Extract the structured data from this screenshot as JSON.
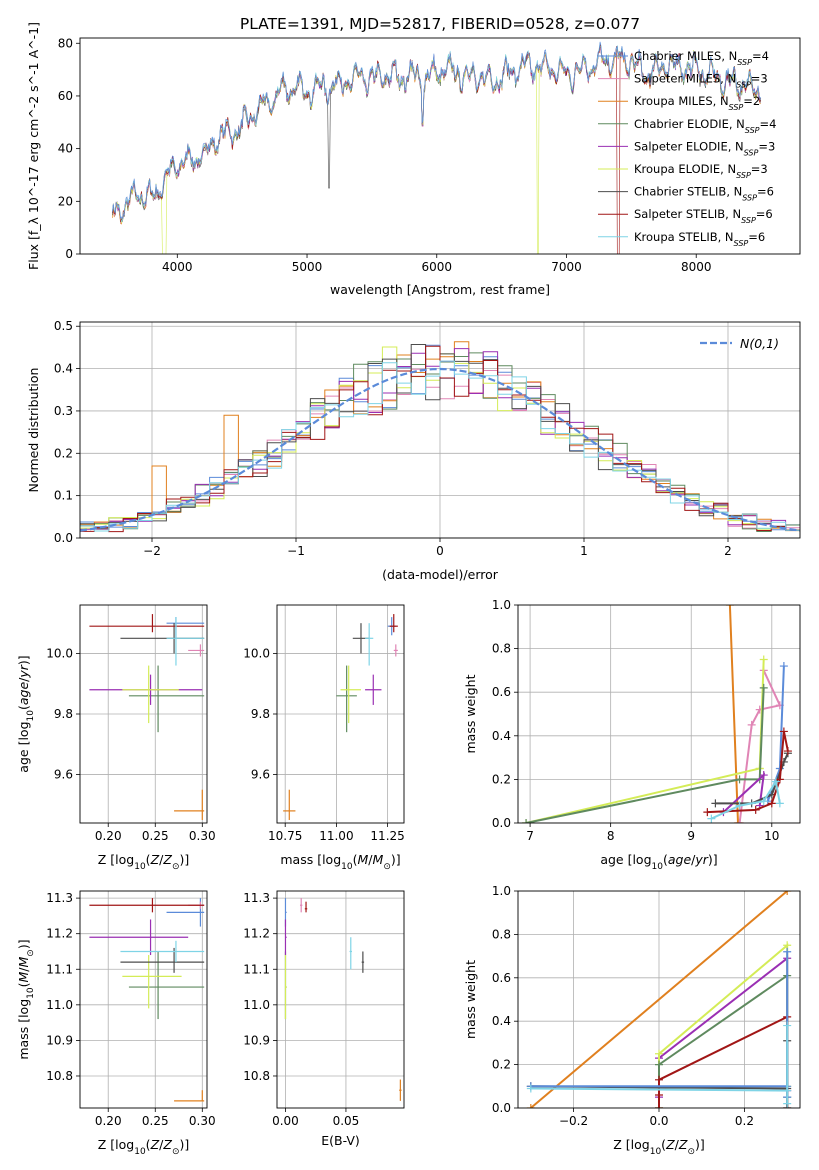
{
  "figure_title": "PLATE=1391, MJD=52817, FIBERID=0528, z=0.077",
  "colors": {
    "chabrier_miles": "#5b8bd9",
    "salpeter_miles": "#e085b5",
    "kroupa_miles": "#e0801f",
    "chabrier_elodie": "#5f8a5f",
    "salpeter_elodie": "#9a2fb3",
    "kroupa_elodie": "#d4ec57",
    "chabrier_stelib": "#4d4d4d",
    "salpeter_stelib": "#a11616",
    "kroupa_stelib": "#7fd4e6",
    "normal": "#5b8bd9"
  },
  "legend": {
    "chabrier_miles": "Chabrier MILES, N_SSP=4",
    "salpeter_miles": "Salpeter MILES, N_SSP=3",
    "kroupa_miles": "Kroupa MILES, N_SSP=2",
    "chabrier_elodie": "Chabrier ELODIE, N_SSP=4",
    "salpeter_elodie": "Salpeter ELODIE, N_SSP=3",
    "kroupa_elodie": "Kroupa ELODIE, N_SSP=3",
    "chabrier_stelib": "Chabrier STELIB, N_SSP=6",
    "salpeter_stelib": "Salpeter STELIB, N_SSP=6",
    "kroupa_stelib": "Kroupa STELIB, N_SSP=6",
    "normal": "N(0,1)"
  },
  "chart_data": [
    {
      "id": "spectrum",
      "type": "line",
      "xlabel": "wavelength [Angstrom, rest frame]",
      "ylabel": "Flux [f_λ 10^-17 erg cm^-2 s^-1 A^-1]",
      "xlim": [
        3250,
        8800
      ],
      "ylim": [
        0,
        82
      ],
      "xticks": [
        4000,
        5000,
        6000,
        7000,
        8000
      ],
      "yticks": [
        0,
        20,
        40,
        60,
        80
      ],
      "legend_position": "right",
      "spectrum_nodes": [
        [
          3500,
          15
        ],
        [
          3600,
          18
        ],
        [
          3700,
          23
        ],
        [
          3800,
          21
        ],
        [
          3900,
          28
        ],
        [
          4000,
          34
        ],
        [
          4100,
          36
        ],
        [
          4200,
          37
        ],
        [
          4300,
          44
        ],
        [
          4400,
          46
        ],
        [
          4500,
          48
        ],
        [
          4600,
          54
        ],
        [
          4700,
          57
        ],
        [
          4800,
          62
        ],
        [
          4900,
          63
        ],
        [
          5000,
          62
        ],
        [
          5100,
          63
        ],
        [
          5200,
          64
        ],
        [
          5300,
          65
        ],
        [
          5400,
          67
        ],
        [
          5500,
          66
        ],
        [
          5600,
          68
        ],
        [
          5700,
          67
        ],
        [
          5800,
          68
        ],
        [
          5900,
          66
        ],
        [
          6000,
          69
        ],
        [
          6100,
          70
        ],
        [
          6200,
          68
        ],
        [
          6300,
          67
        ],
        [
          6400,
          66
        ],
        [
          6500,
          67
        ],
        [
          6600,
          70
        ],
        [
          6700,
          71
        ],
        [
          6800,
          71
        ],
        [
          6900,
          70
        ],
        [
          7000,
          68
        ],
        [
          7100,
          70
        ],
        [
          7200,
          72
        ],
        [
          7300,
          73
        ],
        [
          7400,
          74
        ],
        [
          7500,
          73
        ],
        [
          7600,
          68
        ],
        [
          7700,
          70
        ],
        [
          7800,
          72
        ],
        [
          7900,
          71
        ],
        [
          8000,
          70
        ],
        [
          8100,
          68
        ],
        [
          8200,
          66
        ],
        [
          8300,
          65
        ],
        [
          8400,
          64
        ],
        [
          8500,
          62
        ]
      ]
    },
    {
      "id": "residuals",
      "type": "histogram",
      "xlabel": "(data-model)/error",
      "ylabel": "Normed distribution",
      "xlim": [
        -2.5,
        2.5
      ],
      "ylim": [
        0,
        0.51
      ],
      "xticks": [
        -2,
        -1,
        0,
        1,
        2
      ],
      "yticks": [
        0.0,
        0.1,
        0.2,
        0.3,
        0.4,
        0.5
      ],
      "grid": true,
      "legend_position": "top-right",
      "bin_width": 0.1,
      "bin_start": -2.5
    },
    {
      "id": "age-vs-Z",
      "type": "scatter",
      "xlabel": "Z [log10(Z/Z⊙)]",
      "ylabel": "age [log10(age/yr)]",
      "xlim": [
        0.17,
        0.305
      ],
      "ylim": [
        9.44,
        10.16
      ],
      "xticks": [
        0.2,
        0.25,
        0.3
      ],
      "yticks": [
        9.6,
        9.8,
        10.0
      ],
      "grid": true,
      "points": [
        {
          "s": "chabrier_miles",
          "x": 0.272,
          "y": 10.1,
          "xerr": [
            0.262,
            0.302
          ],
          "yerr": [
            10.05,
            10.12
          ]
        },
        {
          "s": "salpeter_miles",
          "x": 0.298,
          "y": 10.01,
          "xerr": [
            0.285,
            0.302
          ],
          "yerr": [
            9.99,
            10.03
          ]
        },
        {
          "s": "kroupa_miles",
          "x": 0.3,
          "y": 9.48,
          "xerr": [
            0.27,
            0.302
          ],
          "yerr": [
            9.45,
            9.55
          ]
        },
        {
          "s": "chabrier_elodie",
          "x": 0.253,
          "y": 9.86,
          "xerr": [
            0.222,
            0.302
          ],
          "yerr": [
            9.74,
            9.96
          ]
        },
        {
          "s": "salpeter_elodie",
          "x": 0.245,
          "y": 9.88,
          "xerr": [
            0.18,
            0.3
          ],
          "yerr": [
            9.83,
            9.93
          ]
        },
        {
          "s": "kroupa_elodie",
          "x": 0.243,
          "y": 9.88,
          "xerr": [
            0.215,
            0.275
          ],
          "yerr": [
            9.77,
            9.96
          ]
        },
        {
          "s": "chabrier_stelib",
          "x": 0.27,
          "y": 10.05,
          "xerr": [
            0.213,
            0.302
          ],
          "yerr": [
            10.0,
            10.1
          ]
        },
        {
          "s": "salpeter_stelib",
          "x": 0.247,
          "y": 10.09,
          "xerr": [
            0.18,
            0.302
          ],
          "yerr": [
            10.07,
            10.13
          ]
        },
        {
          "s": "kroupa_stelib",
          "x": 0.272,
          "y": 10.05,
          "xerr": [
            0.262,
            0.302
          ],
          "yerr": [
            9.96,
            10.12
          ]
        }
      ]
    },
    {
      "id": "age-vs-mass",
      "type": "scatter",
      "xlabel": "mass [log10(M/M⊙)]",
      "ylabel": "",
      "xlim": [
        10.71,
        11.33
      ],
      "ylim": [
        9.44,
        10.16
      ],
      "xticks": [
        10.75,
        11.0,
        11.25
      ],
      "yticks": [
        9.6,
        9.8,
        10.0
      ],
      "grid": true,
      "points": [
        {
          "s": "chabrier_miles",
          "x": 11.27,
          "y": 10.09,
          "xerr": [
            11.25,
            11.29
          ],
          "yerr": [
            10.06,
            10.12
          ]
        },
        {
          "s": "salpeter_miles",
          "x": 11.29,
          "y": 10.01,
          "xerr": [
            11.28,
            11.3
          ],
          "yerr": [
            9.99,
            10.03
          ]
        },
        {
          "s": "kroupa_miles",
          "x": 10.77,
          "y": 9.48,
          "xerr": [
            10.74,
            10.8
          ],
          "yerr": [
            9.45,
            9.55
          ]
        },
        {
          "s": "chabrier_elodie",
          "x": 11.05,
          "y": 9.86,
          "xerr": [
            11.0,
            11.1
          ],
          "yerr": [
            9.74,
            9.96
          ]
        },
        {
          "s": "salpeter_elodie",
          "x": 11.18,
          "y": 9.88,
          "xerr": [
            11.14,
            11.22
          ],
          "yerr": [
            9.83,
            9.93
          ]
        },
        {
          "s": "kroupa_elodie",
          "x": 11.06,
          "y": 9.88,
          "xerr": [
            11.02,
            11.12
          ],
          "yerr": [
            9.77,
            9.96
          ]
        },
        {
          "s": "chabrier_stelib",
          "x": 11.12,
          "y": 10.05,
          "xerr": [
            11.08,
            11.16
          ],
          "yerr": [
            10.0,
            10.1
          ]
        },
        {
          "s": "salpeter_stelib",
          "x": 11.28,
          "y": 10.09,
          "xerr": [
            11.26,
            11.3
          ],
          "yerr": [
            10.07,
            10.13
          ]
        },
        {
          "s": "kroupa_stelib",
          "x": 11.16,
          "y": 10.05,
          "xerr": [
            11.14,
            11.18
          ],
          "yerr": [
            9.96,
            10.1
          ]
        }
      ]
    },
    {
      "id": "weight-vs-age",
      "type": "line",
      "xlabel": "age [log10(age/yr)]",
      "ylabel": "mass weight",
      "xlim": [
        6.85,
        10.35
      ],
      "ylim": [
        0,
        1.0
      ],
      "xticks": [
        7,
        8,
        9,
        10
      ],
      "yticks": [
        0.0,
        0.2,
        0.4,
        0.6,
        0.8,
        1.0
      ],
      "grid": true,
      "series": [
        {
          "s": "kroupa_miles",
          "x": [
            9.48,
            9.58,
            9.6
          ],
          "y": [
            1.0,
            0.0,
            0.0
          ]
        },
        {
          "s": "salpeter_miles",
          "x": [
            9.6,
            9.75,
            9.85,
            10.1,
            9.9
          ],
          "y": [
            0.0,
            0.45,
            0.52,
            0.54,
            0.7
          ]
        },
        {
          "s": "kroupa_elodie",
          "x": [
            6.95,
            9.85,
            9.85,
            9.9
          ],
          "y": [
            0.0,
            0.25,
            0.25,
            0.75
          ]
        },
        {
          "s": "chabrier_elodie",
          "x": [
            6.95,
            9.6,
            9.85,
            9.9
          ],
          "y": [
            0.0,
            0.2,
            0.2,
            0.62
          ]
        },
        {
          "s": "chabrier_miles",
          "x": [
            9.95,
            10.1,
            10.15
          ],
          "y": [
            0.1,
            0.25,
            0.72
          ]
        },
        {
          "s": "salpeter_elodie",
          "x": [
            9.4,
            9.9,
            9.85
          ],
          "y": [
            0.05,
            0.22,
            0.08
          ]
        },
        {
          "s": "chabrier_stelib",
          "x": [
            9.3,
            9.75,
            10.0,
            10.15,
            10.2
          ],
          "y": [
            0.09,
            0.09,
            0.13,
            0.28,
            0.32
          ]
        },
        {
          "s": "salpeter_stelib",
          "x": [
            9.2,
            9.8,
            10.0,
            10.1,
            10.15,
            10.2
          ],
          "y": [
            0.05,
            0.06,
            0.09,
            0.2,
            0.42,
            0.33
          ]
        },
        {
          "s": "kroupa_stelib",
          "x": [
            9.25,
            9.6,
            9.9,
            10.05,
            10.1
          ],
          "y": [
            0.02,
            0.08,
            0.1,
            0.19,
            0.09
          ]
        }
      ]
    },
    {
      "id": "mass-vs-Z",
      "type": "scatter",
      "xlabel": "Z [log10(Z/Z⊙)]",
      "ylabel": "mass [log10(M/M⊙)]",
      "xlim": [
        0.17,
        0.305
      ],
      "ylim": [
        10.71,
        11.32
      ],
      "xticks": [
        0.2,
        0.25,
        0.3
      ],
      "yticks": [
        10.8,
        10.9,
        11.0,
        11.1,
        11.2,
        11.3
      ],
      "grid": true,
      "points": [
        {
          "s": "chabrier_miles",
          "x": 0.298,
          "y": 11.26,
          "xerr": [
            0.262,
            0.302
          ],
          "yerr": [
            11.22,
            11.3
          ]
        },
        {
          "s": "salpeter_miles",
          "x": 0.298,
          "y": 11.28,
          "xerr": [
            0.285,
            0.302
          ],
          "yerr": [
            11.27,
            11.29
          ]
        },
        {
          "s": "kroupa_miles",
          "x": 0.3,
          "y": 10.73,
          "xerr": [
            0.27,
            0.302
          ],
          "yerr": [
            10.73,
            10.76
          ]
        },
        {
          "s": "chabrier_elodie",
          "x": 0.253,
          "y": 11.05,
          "xerr": [
            0.222,
            0.302
          ],
          "yerr": [
            10.96,
            11.15
          ]
        },
        {
          "s": "salpeter_elodie",
          "x": 0.245,
          "y": 11.19,
          "xerr": [
            0.18,
            0.285
          ],
          "yerr": [
            11.14,
            11.24
          ]
        },
        {
          "s": "kroupa_elodie",
          "x": 0.243,
          "y": 11.08,
          "xerr": [
            0.215,
            0.278
          ],
          "yerr": [
            10.99,
            11.14
          ]
        },
        {
          "s": "chabrier_stelib",
          "x": 0.27,
          "y": 11.12,
          "xerr": [
            0.213,
            0.302
          ],
          "yerr": [
            11.09,
            11.16
          ]
        },
        {
          "s": "salpeter_stelib",
          "x": 0.247,
          "y": 11.28,
          "xerr": [
            0.18,
            0.302
          ],
          "yerr": [
            11.26,
            11.3
          ]
        },
        {
          "s": "kroupa_stelib",
          "x": 0.272,
          "y": 11.15,
          "xerr": [
            0.213,
            0.302
          ],
          "yerr": [
            11.12,
            11.18
          ]
        }
      ]
    },
    {
      "id": "mass-vs-EBV",
      "type": "scatter",
      "xlabel": "E(B-V)",
      "ylabel": "",
      "xlim": [
        -0.007,
        0.098
      ],
      "ylim": [
        10.71,
        11.32
      ],
      "xticks": [
        0.0,
        0.05
      ],
      "yticks": [
        10.8,
        10.9,
        11.0,
        11.1,
        11.2,
        11.3
      ],
      "grid": true,
      "points": [
        {
          "s": "chabrier_miles",
          "x": 0.0,
          "y": 11.26,
          "xerr": [
            0.0,
            0.001
          ],
          "yerr": [
            11.22,
            11.3
          ]
        },
        {
          "s": "salpeter_miles",
          "x": 0.013,
          "y": 11.28,
          "xerr": [
            0.012,
            0.014
          ],
          "yerr": [
            11.26,
            11.3
          ]
        },
        {
          "s": "kroupa_miles",
          "x": 0.095,
          "y": 10.76,
          "xerr": [
            0.094,
            0.096
          ],
          "yerr": [
            10.73,
            10.79
          ]
        },
        {
          "s": "chabrier_elodie",
          "x": 0.0,
          "y": 11.05,
          "xerr": [
            0.0,
            0.001
          ],
          "yerr": [
            10.96,
            11.15
          ]
        },
        {
          "s": "salpeter_elodie",
          "x": 0.0,
          "y": 11.19,
          "xerr": [
            0.0,
            0.001
          ],
          "yerr": [
            11.14,
            11.24
          ]
        },
        {
          "s": "kroupa_elodie",
          "x": 0.0,
          "y": 11.05,
          "xerr": [
            0.0,
            0.001
          ],
          "yerr": [
            10.96,
            11.14
          ]
        },
        {
          "s": "chabrier_stelib",
          "x": 0.064,
          "y": 11.12,
          "xerr": [
            0.063,
            0.065
          ],
          "yerr": [
            11.09,
            11.15
          ]
        },
        {
          "s": "salpeter_stelib",
          "x": 0.017,
          "y": 11.27,
          "xerr": [
            0.016,
            0.018
          ],
          "yerr": [
            11.26,
            11.29
          ]
        },
        {
          "s": "kroupa_stelib",
          "x": 0.054,
          "y": 11.15,
          "xerr": [
            0.053,
            0.055
          ],
          "yerr": [
            11.1,
            11.19
          ]
        }
      ]
    },
    {
      "id": "weight-vs-Z",
      "type": "line",
      "xlabel": "Z [log10(Z/Z⊙)]",
      "ylabel": "mass weight",
      "xlim": [
        -0.33,
        0.33
      ],
      "ylim": [
        0,
        1.0
      ],
      "xticks": [
        -0.2,
        0.0,
        0.2
      ],
      "yticks": [
        0.0,
        0.2,
        0.4,
        0.6,
        0.8,
        1.0
      ],
      "grid": true,
      "series": [
        {
          "s": "kroupa_miles",
          "x": [
            -0.3,
            0.3
          ],
          "y": [
            0.0,
            1.0
          ]
        },
        {
          "s": "salpeter_elodie",
          "x": [
            0.0,
            0.0,
            0.3,
            0.3
          ],
          "y": [
            0.05,
            0.23,
            0.69,
            0.08
          ]
        },
        {
          "s": "kroupa_elodie",
          "x": [
            0.0,
            0.0,
            0.3,
            0.3
          ],
          "y": [
            0.0,
            0.25,
            0.75,
            0.1
          ]
        },
        {
          "s": "chabrier_elodie",
          "x": [
            0.0,
            0.0,
            0.3,
            0.3
          ],
          "y": [
            0.0,
            0.2,
            0.61,
            0.05
          ]
        },
        {
          "s": "salpeter_stelib",
          "x": [
            0.0,
            0.0,
            0.0,
            0.3,
            0.3
          ],
          "y": [
            0.0,
            0.06,
            0.13,
            0.42,
            0.0
          ]
        },
        {
          "s": "chabrier_stelib",
          "x": [
            -0.3,
            0.3,
            0.3,
            0.3
          ],
          "y": [
            0.1,
            0.09,
            0.31,
            0.0
          ]
        },
        {
          "s": "chabrier_miles",
          "x": [
            -0.3,
            0.3,
            0.3,
            0.3
          ],
          "y": [
            0.1,
            0.1,
            0.72,
            0.05
          ]
        },
        {
          "s": "kroupa_stelib",
          "x": [
            -0.3,
            0.3,
            0.3,
            0.3
          ],
          "y": [
            0.09,
            0.08,
            0.38,
            0.02
          ]
        }
      ]
    }
  ]
}
